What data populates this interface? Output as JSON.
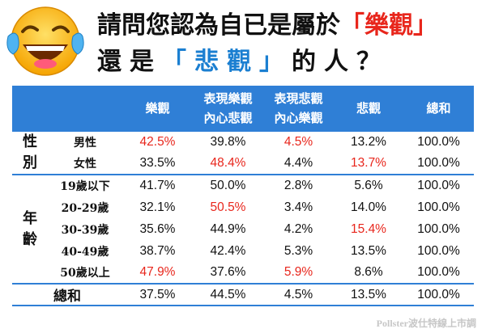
{
  "title": {
    "line1_prefix": "請問您認為自已是屬於",
    "line1_hl": "「樂觀」",
    "line2_prefix": "還是",
    "line2_hl": "「悲觀」",
    "line2_suffix": "的人？"
  },
  "headers": {
    "optimistic": "樂觀",
    "show_opt_1": "表現樂觀",
    "show_opt_2": "內心悲觀",
    "show_pes_1": "表現悲觀",
    "show_pes_2": "內心樂觀",
    "pessimistic": "悲觀",
    "total": "總和"
  },
  "groups": {
    "gender_1": "性",
    "gender_2": "別",
    "age_1": "年",
    "age_2": "齡",
    "total": "總和"
  },
  "source": "Pollster波仕特線上市調",
  "colors": {
    "accent_blue": "#2f7fd6",
    "highlight_red": "#e8261c"
  },
  "chart_data": {
    "type": "table",
    "columns": [
      "樂觀",
      "表現樂觀 內心悲觀",
      "表現悲觀 內心樂觀",
      "悲觀",
      "總和"
    ],
    "rows": [
      {
        "group": "性別",
        "label": "男性",
        "values": [
          "42.5%",
          "39.8%",
          "4.5%",
          "13.2%",
          "100.0%"
        ],
        "highlight": [
          0,
          2
        ]
      },
      {
        "group": "性別",
        "label": "女性",
        "values": [
          "33.5%",
          "48.4%",
          "4.4%",
          "13.7%",
          "100.0%"
        ],
        "highlight": [
          1,
          3
        ]
      },
      {
        "group": "年齡",
        "label": "19歲以下",
        "values": [
          "41.7%",
          "50.0%",
          "2.8%",
          "5.6%",
          "100.0%"
        ],
        "highlight": []
      },
      {
        "group": "年齡",
        "label": "20-29歲",
        "values": [
          "32.1%",
          "50.5%",
          "3.4%",
          "14.0%",
          "100.0%"
        ],
        "highlight": [
          1
        ]
      },
      {
        "group": "年齡",
        "label": "30-39歲",
        "values": [
          "35.6%",
          "44.9%",
          "4.2%",
          "15.4%",
          "100.0%"
        ],
        "highlight": [
          3
        ]
      },
      {
        "group": "年齡",
        "label": "40-49歲",
        "values": [
          "38.7%",
          "42.4%",
          "5.3%",
          "13.5%",
          "100.0%"
        ],
        "highlight": []
      },
      {
        "group": "年齡",
        "label": "50歲以上",
        "values": [
          "47.9%",
          "37.6%",
          "5.9%",
          "8.6%",
          "100.0%"
        ],
        "highlight": [
          0,
          2
        ]
      },
      {
        "group": "總和",
        "label": "",
        "values": [
          "37.5%",
          "44.5%",
          "4.5%",
          "13.5%",
          "100.0%"
        ],
        "highlight": []
      }
    ]
  }
}
